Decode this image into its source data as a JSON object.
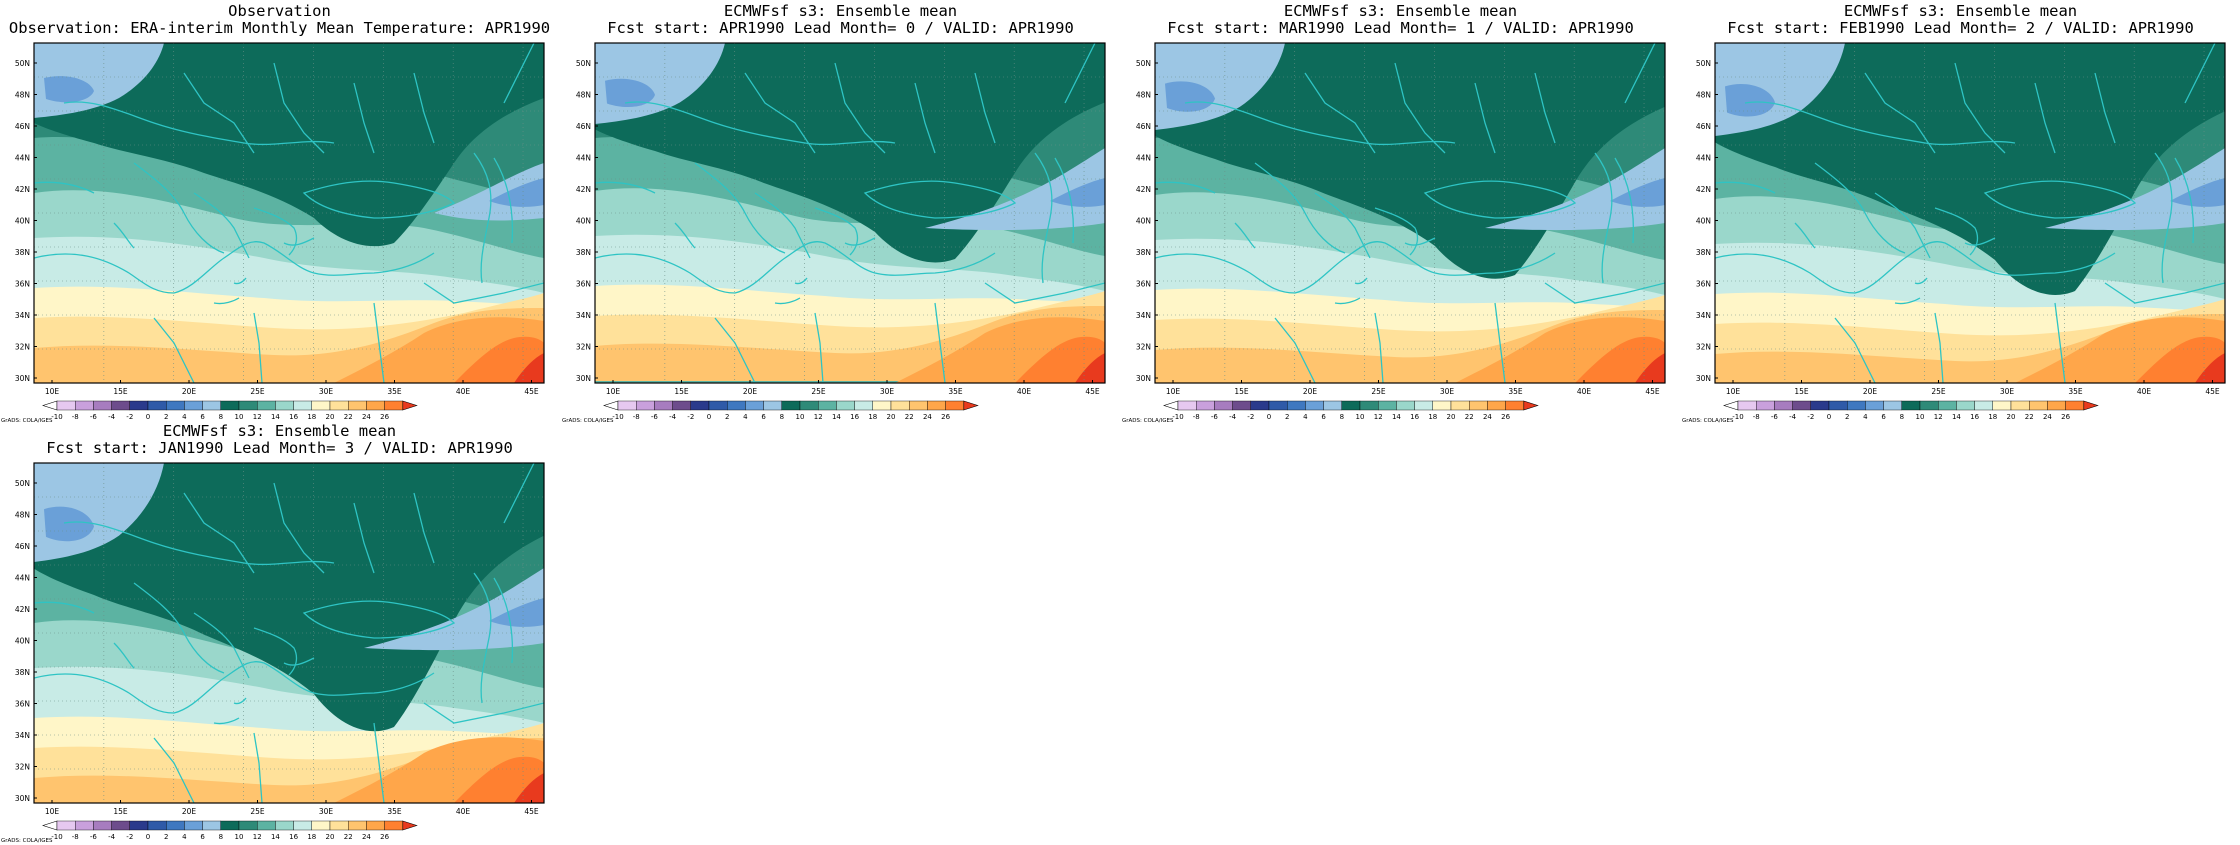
{
  "panels": [
    {
      "title_line1": "Observation",
      "title_line2": "Observation: ERA-interim Monthly Mean Temperature: APR1990"
    },
    {
      "title_line1": "ECMWFsf s3: Ensemble mean",
      "title_line2": "Fcst start: APR1990  Lead Month= 0 / VALID: APR1990"
    },
    {
      "title_line1": "ECMWFsf s3: Ensemble mean",
      "title_line2": "Fcst start: MAR1990  Lead Month= 1 / VALID: APR1990"
    },
    {
      "title_line1": "ECMWFsf s3: Ensemble mean",
      "title_line2": "Fcst start: FEB1990  Lead Month= 2 / VALID: APR1990"
    },
    {
      "title_line1": "ECMWFsf s3: Ensemble mean",
      "title_line2": "Fcst start: JAN1990  Lead Month= 3 / VALID: APR1990"
    }
  ],
  "lat_labels": [
    "50N",
    "48N",
    "46N",
    "44N",
    "42N",
    "40N",
    "38N",
    "36N",
    "34N",
    "32N",
    "30N"
  ],
  "lon_labels": [
    "10E",
    "15E",
    "20E",
    "25E",
    "30E",
    "35E",
    "40E",
    "45E"
  ],
  "colorbar": {
    "credit": "GrADS: COLA/IGES",
    "levels": [
      "-10",
      "-8",
      "-6",
      "-4",
      "-2",
      "0",
      "2",
      "4",
      "6",
      "8",
      "10",
      "12",
      "14",
      "16",
      "18",
      "20",
      "22",
      "24",
      "26"
    ],
    "colors": [
      "#ffffff",
      "#e6c8f0",
      "#c9a0dc",
      "#a77cbf",
      "#6d4c8c",
      "#2a3a8c",
      "#2f5aa8",
      "#3f78c0",
      "#6aa0d8",
      "#9cc6e4",
      "#0d6b5a",
      "#2e8a78",
      "#5cb3a2",
      "#9ad7cb",
      "#c8ebe6",
      "#fff6c8",
      "#ffe19a",
      "#ffc46e",
      "#ffa64a",
      "#ff8030",
      "#e83a1e"
    ]
  },
  "palette": {
    "c_neg": "#6aa0d8",
    "c0_2": "#3f78c0",
    "c2_4": "#6aa0d8",
    "c4_6": "#9cc6e4",
    "c8_10": "#0d6b5a",
    "c10_12": "#2e8a78",
    "c12_14": "#5cb3a2",
    "c14_16": "#9ad7cb",
    "c16_18": "#c8ebe6",
    "c18_20": "#fff6c8",
    "c20_22": "#ffe19a",
    "c22_24": "#ffc46e",
    "c24_26": "#ffa64a",
    "c26": "#ff8030",
    "c_hot": "#e83a1e",
    "coast": "#2ec4c4"
  }
}
